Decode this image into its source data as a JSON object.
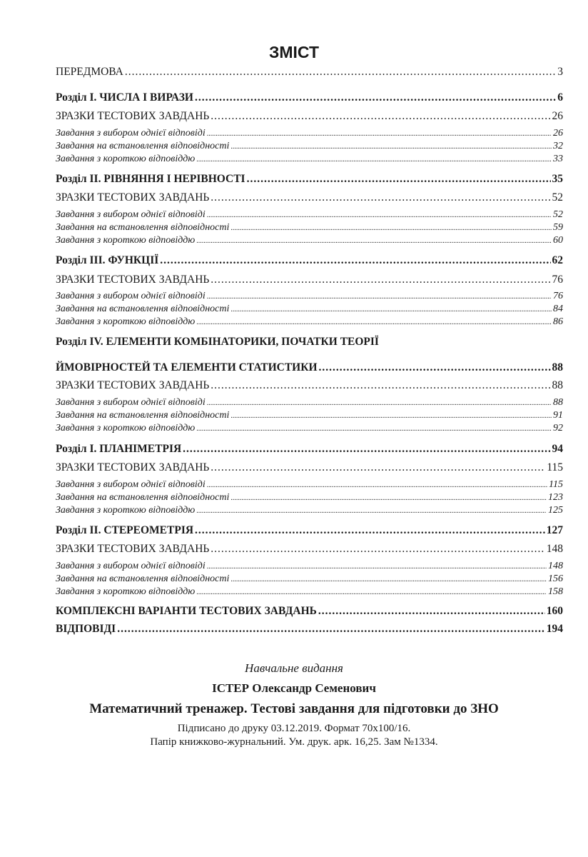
{
  "title": "ЗМІСТ",
  "toc": [
    {
      "type": "main-plain",
      "label": "ПЕРЕДМОВА",
      "page": "3"
    },
    {
      "type": "main",
      "label": "Розділ I. ЧИСЛА І ВИРАЗИ",
      "page": "6"
    },
    {
      "type": "sample",
      "label": "ЗРАЗКИ ТЕСТОВИХ ЗАВДАНЬ",
      "page": "26"
    },
    {
      "type": "item",
      "label": "Завдання з вибором однієї відповіді",
      "page": "26"
    },
    {
      "type": "item",
      "label": "Завдання на встановлення відповідності",
      "page": "32"
    },
    {
      "type": "item",
      "label": "Завдання з короткою відповіддю",
      "page": "33"
    },
    {
      "type": "main",
      "label": "Розділ II. РІВНЯННЯ І НЕРІВНОСТІ",
      "page": "35"
    },
    {
      "type": "sample",
      "label": "ЗРАЗКИ ТЕСТОВИХ ЗАВДАНЬ",
      "page": "52"
    },
    {
      "type": "item",
      "label": "Завдання з вибором однієї відповіді",
      "page": "52"
    },
    {
      "type": "item",
      "label": "Завдання на встановлення відповідності",
      "page": "59"
    },
    {
      "type": "item",
      "label": "Завдання з короткою відповіддю",
      "page": "60"
    },
    {
      "type": "main",
      "label": "Розділ III. ФУНКЦІЇ",
      "page": "62"
    },
    {
      "type": "sample",
      "label": "ЗРАЗКИ ТЕСТОВИХ ЗАВДАНЬ",
      "page": "76"
    },
    {
      "type": "item",
      "label": "Завдання з вибором однієї відповіді",
      "page": "76"
    },
    {
      "type": "item",
      "label": "Завдання на встановлення відповідності",
      "page": "84"
    },
    {
      "type": "item",
      "label": "Завдання з короткою відповіддю",
      "page": "86"
    },
    {
      "type": "main-head",
      "label": "Розділ IV. ЕЛЕМЕНТИ КОМБІНАТОРИКИ, ПОЧАТКИ ТЕОРІЇ",
      "page": ""
    },
    {
      "type": "main",
      "label": "ЙМОВІРНОСТЕЙ ТА ЕЛЕМЕНТИ СТАТИСТИКИ",
      "page": "88"
    },
    {
      "type": "sample",
      "label": "ЗРАЗКИ ТЕСТОВИХ ЗАВДАНЬ",
      "page": "88"
    },
    {
      "type": "item",
      "label": "Завдання з вибором однієї відповіді",
      "page": "88"
    },
    {
      "type": "item",
      "label": "Завдання на встановлення відповідності",
      "page": "91"
    },
    {
      "type": "item",
      "label": "Завдання з короткою відповіддю",
      "page": "92"
    },
    {
      "type": "main",
      "label": "Розділ I. ПЛАНІМЕТРІЯ",
      "page": "94"
    },
    {
      "type": "sample",
      "label": "ЗРАЗКИ ТЕСТОВИХ ЗАВДАНЬ",
      "page": "115"
    },
    {
      "type": "item",
      "label": "Завдання з вибором однієї відповіді",
      "page": "115"
    },
    {
      "type": "item",
      "label": "Завдання на встановлення відповідності",
      "page": "123"
    },
    {
      "type": "item",
      "label": "Завдання з короткою відповіддю",
      "page": "125"
    },
    {
      "type": "main",
      "label": "Розділ II. СТЕРЕОМЕТРІЯ",
      "page": "127"
    },
    {
      "type": "sample",
      "label": "ЗРАЗКИ ТЕСТОВИХ ЗАВДАНЬ",
      "page": "148"
    },
    {
      "type": "item",
      "label": "Завдання з вибором однієї відповіді",
      "page": "148"
    },
    {
      "type": "item",
      "label": "Завдання на встановлення відповідності",
      "page": "156"
    },
    {
      "type": "item",
      "label": "Завдання з короткою відповіддю",
      "page": "158"
    },
    {
      "type": "main",
      "label": "КОМПЛЕКСНІ ВАРІАНТИ ТЕСТОВИХ ЗАВДАНЬ",
      "page": "160"
    },
    {
      "type": "main",
      "label": "ВІДПОВІДІ",
      "page": "194"
    }
  ],
  "imprint": {
    "edition_type": "Навчальне видання",
    "author": "ІСТЕР Олександр Семенович",
    "book_title": "Математичний тренажер. Тестові завдання для підготовки до ЗНО",
    "signed_line": "Підписано до друку 03.12.2019. Формат 70x100/16.",
    "paper_line": "Папір книжково-журнальний. Ум. друк. арк. 16,25. Зам №1334."
  }
}
